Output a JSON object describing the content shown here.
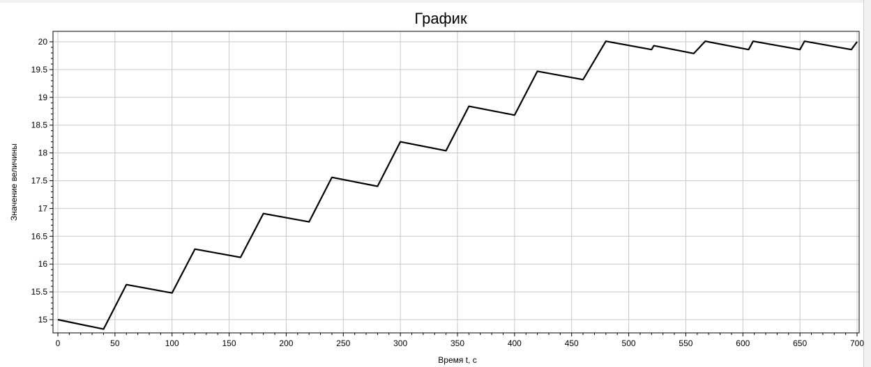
{
  "chart_data": {
    "type": "line",
    "title": "График",
    "xlabel": "Время t, c",
    "ylabel": "Значение величины",
    "xlim": [
      0,
      700
    ],
    "ylim": [
      14.8,
      20.1
    ],
    "xticks": [
      0,
      50,
      100,
      150,
      200,
      250,
      300,
      350,
      400,
      450,
      500,
      550,
      600,
      650,
      700
    ],
    "yticks": [
      15,
      15.5,
      16,
      16.5,
      17,
      17.5,
      18,
      18.5,
      19,
      19.5,
      20
    ],
    "ytick_labels": [
      "15",
      "15.5",
      "16",
      "16.5",
      "17",
      "17.5",
      "18",
      "18.5",
      "19",
      "19.5",
      "20"
    ],
    "grid": true,
    "legend": "none",
    "series": [
      {
        "color": "#000000",
        "x": [
          0,
          40,
          60,
          100,
          120,
          160,
          180,
          220,
          240,
          280,
          300,
          340,
          360,
          400,
          420,
          460,
          480,
          520,
          522,
          557,
          567,
          605,
          609,
          650,
          654,
          695,
          700
        ],
        "y": [
          15.0,
          14.83,
          15.63,
          15.48,
          16.27,
          16.12,
          16.91,
          16.76,
          17.56,
          17.4,
          18.2,
          18.04,
          18.84,
          18.68,
          19.47,
          19.32,
          20.01,
          19.86,
          19.93,
          19.79,
          20.01,
          19.86,
          20.01,
          19.86,
          20.01,
          19.86,
          20.0
        ]
      }
    ]
  }
}
